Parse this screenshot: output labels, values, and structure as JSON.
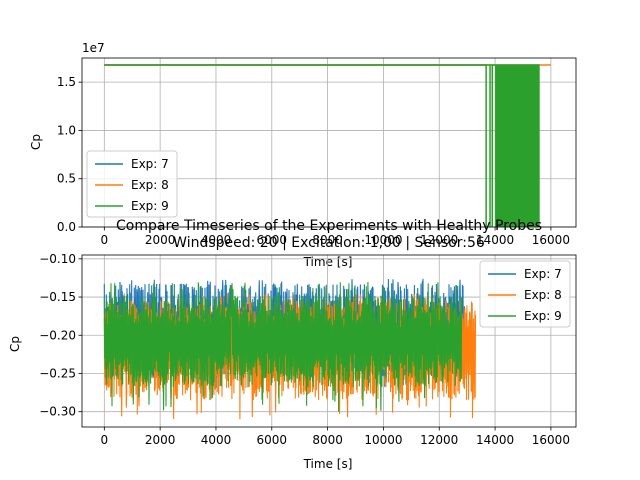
{
  "colors": {
    "series": [
      "#1f77b4",
      "#ff7f0e",
      "#2ca02c"
    ],
    "grid": "#b0b0b0",
    "axis": "#000000",
    "background": "#ffffff"
  },
  "chart_data": [
    {
      "type": "line",
      "title": "",
      "xlabel": "Time [s]",
      "ylabel": "Cp",
      "offset_text": "1e7",
      "xlim": [
        -800,
        16900
      ],
      "ylim": [
        0,
        17500000
      ],
      "xticks": [
        0,
        2000,
        4000,
        6000,
        8000,
        10000,
        12000,
        14000,
        16000
      ],
      "xtick_labels": [
        "0",
        "2000",
        "4000",
        "6000",
        "8000",
        "10000",
        "12000",
        "14000",
        "16000"
      ],
      "yticks": [
        0,
        5000000,
        10000000,
        15000000
      ],
      "ytick_labels": [
        "0.0",
        "0.5",
        "1.0",
        "1.5"
      ],
      "grid": true,
      "legend_position": "center-left",
      "series": [
        {
          "name": "Exp: 7",
          "constant_value": 16777216,
          "x_range": [
            0,
            13700
          ],
          "dropouts": [],
          "dropout_end": null
        },
        {
          "name": "Exp: 8",
          "constant_value": 16777216,
          "x_range": [
            0,
            16000
          ],
          "dropouts": [],
          "dropout_end": null
        },
        {
          "name": "Exp: 9",
          "constant_value": 16777216,
          "x_range": [
            0,
            15600
          ],
          "dropouts": [
            13680,
            13820,
            13900
          ],
          "dropout_end": 15600
        }
      ]
    },
    {
      "type": "line",
      "title": "Compare Timeseries of the Experiments with Healthy Probes\nWindspeed: 20 | Excitation: 1,00 | Sensor:56",
      "xlabel": "Time [s]",
      "ylabel": "Cp",
      "xlim": [
        -800,
        16900
      ],
      "ylim": [
        -0.32,
        -0.095
      ],
      "xticks": [
        0,
        2000,
        4000,
        6000,
        8000,
        10000,
        12000,
        14000,
        16000
      ],
      "xtick_labels": [
        "0",
        "2000",
        "4000",
        "6000",
        "8000",
        "10000",
        "12000",
        "14000",
        "16000"
      ],
      "yticks": [
        -0.3,
        -0.25,
        -0.2,
        -0.15,
        -0.1
      ],
      "ytick_labels": [
        "−0.30",
        "−0.25",
        "−0.20",
        "−0.15",
        "−0.10"
      ],
      "grid": true,
      "legend_position": "top-right",
      "series": [
        {
          "name": "Exp: 7",
          "x_range": [
            0,
            12900
          ],
          "mean": -0.197,
          "low": -0.255,
          "high": -0.132,
          "spike_low": -0.27,
          "spike_high": -0.125
        },
        {
          "name": "Exp: 8",
          "x_range": [
            0,
            13300
          ],
          "mean": -0.212,
          "low": -0.285,
          "high": -0.155,
          "spike_low": -0.31,
          "spike_high": -0.145
        },
        {
          "name": "Exp: 9",
          "x_range": [
            0,
            12800
          ],
          "mean": -0.205,
          "low": -0.268,
          "high": -0.148,
          "spike_low": -0.3,
          "spike_high": -0.13
        }
      ]
    }
  ]
}
